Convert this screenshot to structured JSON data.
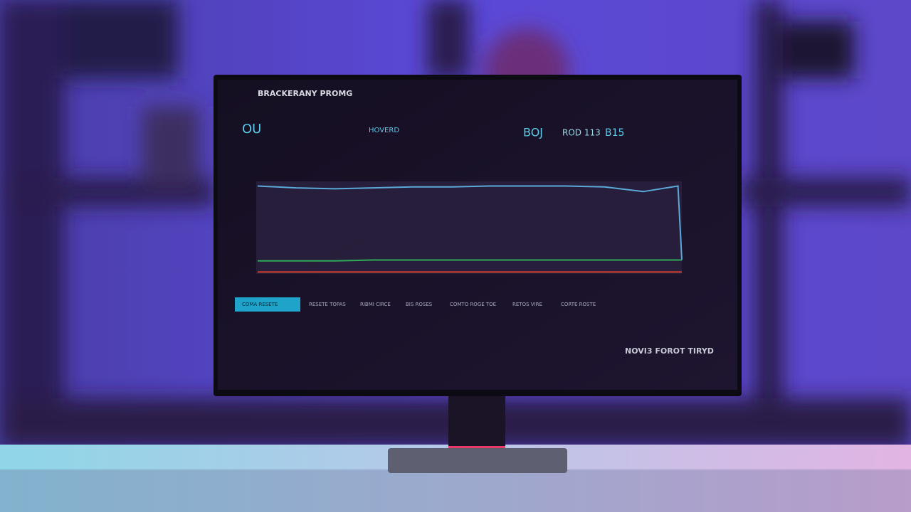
{
  "screen": {
    "title": "BRACKERANY PROMG",
    "header": [
      "OU",
      "HOVERD",
      "BOJ",
      "ROD 113",
      "B15"
    ],
    "tabs": [
      "COMA RESETE",
      "RESETE TOPAS",
      "RIBMI CIRCE",
      "BIS ROSES",
      "COMTO ROGE TOE",
      "RETOS VIRE",
      "CORTE ROSTE"
    ],
    "footer": "NOVI3 FOROT TIRYD"
  },
  "chart_data": {
    "type": "line",
    "x": [
      0,
      1,
      2,
      3,
      4,
      5,
      6,
      7,
      8,
      9,
      10,
      10.9,
      11
    ],
    "xlim": [
      0,
      11
    ],
    "ylim": [
      0,
      100
    ],
    "series": [
      {
        "color": "#5aa9d8",
        "values": [
          95,
          93,
          92,
          93,
          94,
          94,
          95,
          95,
          95,
          94,
          89,
          95,
          15
        ]
      },
      {
        "color": "#2fa85a",
        "values": [
          14,
          14,
          14,
          15,
          15,
          15,
          15,
          15,
          15,
          15,
          15,
          15,
          15
        ]
      },
      {
        "color": "#d8402e",
        "values": [
          2,
          2,
          2,
          2,
          2,
          2,
          2,
          2,
          2,
          2,
          2,
          2,
          2
        ]
      }
    ]
  }
}
